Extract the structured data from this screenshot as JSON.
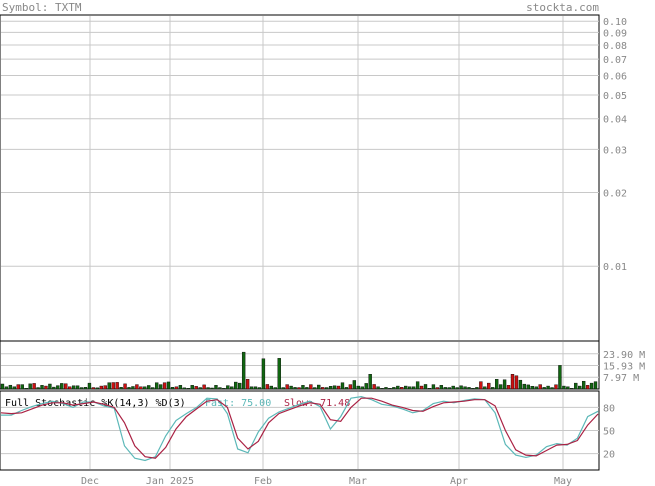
{
  "header": {
    "symbol_label": "Symbol: TXTM",
    "site": "stockta.com"
  },
  "colors": {
    "grid": "#c8c8c8",
    "border": "#000000",
    "label": "#888888",
    "volume_up": "#116611",
    "volume_down": "#cc1111",
    "fast": "#5cb8b8",
    "slow": "#aa2244"
  },
  "chart_data": [
    {
      "type": "line",
      "panel": "price",
      "scale": "log",
      "ylim": [
        0.005,
        0.105
      ],
      "y_ticks": [
        "0.10",
        "0.09",
        "0.08",
        "0.07",
        "0.06",
        "0.05",
        "0.04",
        "0.03",
        "0.02",
        "0.01"
      ],
      "series": []
    },
    {
      "type": "bar",
      "panel": "volume",
      "y_ticks": [
        "23.90 M",
        "15.93 M",
        "7.97 M"
      ],
      "ylim": [
        0,
        31.87
      ],
      "values": [
        3.4,
        1.5,
        2.6,
        1.5,
        3.0,
        3.0,
        0.5,
        3.5,
        3.8,
        1.0,
        2.5,
        2.0,
        3.4,
        1.3,
        2.3,
        3.8,
        3.6,
        1.5,
        2.2,
        2.2,
        1.0,
        1.2,
        4.0,
        1.0,
        0.8,
        2.0,
        2.3,
        4.3,
        4.4,
        4.5,
        1.2,
        3.5,
        1.1,
        1.7,
        3.0,
        1.5,
        1.5,
        2.4,
        1.0,
        4.3,
        3.0,
        4.3,
        4.8,
        1.2,
        1.5,
        2.5,
        0.8,
        0.5,
        2.5,
        1.8,
        1.0,
        2.8,
        1.0,
        0.7,
        2.5,
        1.0,
        0.5,
        2.3,
        1.5,
        4.7,
        4.0,
        25.0,
        6.6,
        1.5,
        1.5,
        1.0,
        20.5,
        3.1,
        2.0,
        1.0,
        20.8,
        1.0,
        3.0,
        2.0,
        1.1,
        1.0,
        2.5,
        1.1,
        3.0,
        1.0,
        2.7,
        1.1,
        1.0,
        1.9,
        2.2,
        2.0,
        4.3,
        1.1,
        3.0,
        5.8,
        2.0,
        1.5,
        3.8,
        10.0,
        3.1,
        1.5,
        0.5,
        1.1,
        0.5,
        1.1,
        2.0,
        1.2,
        2.0,
        1.5,
        1.5,
        5.0,
        2.0,
        3.1,
        0.5,
        3.0,
        1.0,
        2.5,
        1.1,
        1.0,
        2.0,
        1.0,
        2.2,
        1.5,
        1.1,
        0.5,
        1.1,
        5.0,
        1.5,
        4.0,
        1.1,
        6.6,
        3.0,
        6.3,
        2.5,
        10.0,
        9.0,
        6.0,
        3.3,
        2.8,
        1.9,
        1.5,
        3.0,
        1.1,
        2.0,
        1.0,
        2.9,
        16.0,
        2.0,
        1.5,
        0.5,
        4.0,
        2.0,
        5.3,
        2.5,
        4.0,
        5.0
      ],
      "up": [
        1,
        1,
        1,
        1,
        0,
        1,
        1,
        1,
        0,
        1,
        1,
        0,
        1,
        1,
        1,
        1,
        0,
        0,
        1,
        1,
        1,
        1,
        1,
        0,
        1,
        0,
        0,
        1,
        0,
        0,
        1,
        0,
        1,
        1,
        0,
        0,
        1,
        1,
        1,
        1,
        1,
        0,
        1,
        1,
        0,
        1,
        1,
        1,
        1,
        0,
        1,
        0,
        1,
        1,
        1,
        1,
        1,
        1,
        1,
        1,
        1,
        1,
        0,
        1,
        1,
        1,
        1,
        0,
        1,
        1,
        1,
        1,
        0,
        1,
        1,
        0,
        1,
        1,
        0,
        1,
        1,
        0,
        1,
        1,
        1,
        0,
        1,
        1,
        0,
        1,
        1,
        1,
        1,
        1,
        0,
        1,
        1,
        1,
        1,
        1,
        1,
        0,
        1,
        1,
        1,
        1,
        0,
        1,
        1,
        1,
        0,
        1,
        1,
        1,
        1,
        1,
        1,
        1,
        1,
        1,
        1,
        0,
        1,
        0,
        1,
        1,
        1,
        1,
        0,
        0,
        0,
        1,
        1,
        1,
        1,
        1,
        0,
        1,
        1,
        1,
        0,
        1,
        1,
        1,
        1,
        1,
        1,
        1,
        0,
        1,
        1,
        1
      ]
    },
    {
      "type": "line",
      "panel": "stochastic",
      "title": "Full Stochastic %K(14,3) %D(3)",
      "fast_label": "Fast: 75.00",
      "slow_label": "Slow: 71.48",
      "y_ticks": [
        "80",
        "50",
        "20"
      ],
      "ylim": [
        0,
        100
      ],
      "series": [
        {
          "name": "Fast",
          "values": [
            70,
            70,
            76,
            81,
            85,
            88,
            85,
            80,
            87,
            87,
            82,
            79,
            30,
            14,
            11,
            16,
            43,
            63,
            72,
            80,
            92,
            91,
            72,
            26,
            21,
            48,
            66,
            74,
            79,
            84,
            88,
            81,
            52,
            68,
            92,
            94,
            90,
            84,
            82,
            78,
            73,
            76,
            85,
            88,
            86,
            89,
            91,
            90,
            73,
            32,
            18,
            15,
            18,
            29,
            33,
            31,
            40,
            68,
            75
          ]
        },
        {
          "name": "Slow",
          "values": [
            73,
            72,
            73,
            78,
            83,
            86,
            86,
            83,
            85,
            87,
            84,
            80,
            60,
            30,
            16,
            14,
            28,
            52,
            68,
            78,
            88,
            90,
            80,
            40,
            26,
            36,
            60,
            72,
            77,
            82,
            86,
            84,
            64,
            62,
            80,
            92,
            92,
            88,
            83,
            80,
            76,
            75,
            81,
            86,
            87,
            88,
            90,
            90,
            82,
            50,
            25,
            18,
            17,
            24,
            31,
            32,
            37,
            57,
            71.48
          ]
        }
      ]
    }
  ],
  "x_axis": {
    "labels": [
      "Dec",
      "Jan 2025",
      "Feb",
      "Mar",
      "Apr",
      "May"
    ]
  }
}
